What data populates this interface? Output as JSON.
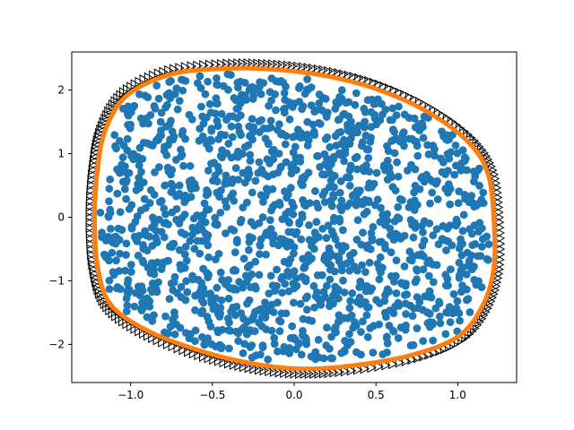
{
  "chart_data": {
    "type": "scatter",
    "title": "",
    "xlabel": "",
    "ylabel": "",
    "xlim": [
      -1.36,
      1.36
    ],
    "ylim": [
      -2.6,
      2.6
    ],
    "grid": false,
    "x_ticks": [
      {
        "value": -1.0,
        "label": "−1.0"
      },
      {
        "value": -0.5,
        "label": "−0.5"
      },
      {
        "value": 0.0,
        "label": "0.0"
      },
      {
        "value": 0.5,
        "label": "0.5"
      },
      {
        "value": 1.0,
        "label": "1.0"
      }
    ],
    "y_ticks": [
      {
        "value": -2,
        "label": "−2"
      },
      {
        "value": -1,
        "label": "−1"
      },
      {
        "value": 0,
        "label": "0"
      },
      {
        "value": 1,
        "label": "1"
      },
      {
        "value": 2,
        "label": "2"
      }
    ],
    "boundary_outline": {
      "description_of_shape": "closed convex curve",
      "points": [
        [
          -0.4,
          2.34
        ],
        [
          -0.1,
          2.32
        ],
        [
          0.2,
          2.22
        ],
        [
          0.5,
          2.02
        ],
        [
          0.8,
          1.68
        ],
        [
          1.05,
          1.22
        ],
        [
          1.18,
          0.72
        ],
        [
          1.22,
          0.0
        ],
        [
          1.22,
          -0.8
        ],
        [
          1.15,
          -1.4
        ],
        [
          1.0,
          -1.88
        ],
        [
          0.7,
          -2.18
        ],
        [
          0.3,
          -2.35
        ],
        [
          0.0,
          -2.38
        ],
        [
          -0.3,
          -2.28
        ],
        [
          -0.6,
          -2.08
        ],
        [
          -0.9,
          -1.78
        ],
        [
          -1.12,
          -1.38
        ],
        [
          -1.2,
          -0.8
        ],
        [
          -1.22,
          0.0
        ],
        [
          -1.2,
          0.8
        ],
        [
          -1.15,
          1.4
        ],
        [
          -1.02,
          1.92
        ],
        [
          -0.75,
          2.25
        ]
      ]
    },
    "series": [
      {
        "marker": "circle",
        "color": "#1f77b4",
        "count": 1500,
        "region": "interior of boundary_outline"
      },
      {
        "marker": "tri_right",
        "color": "#000000",
        "count": 240,
        "region": "outer edge of boundary_outline"
      },
      {
        "marker": "line",
        "color": "#ff7f0e",
        "region": "boundary_outline"
      }
    ]
  }
}
